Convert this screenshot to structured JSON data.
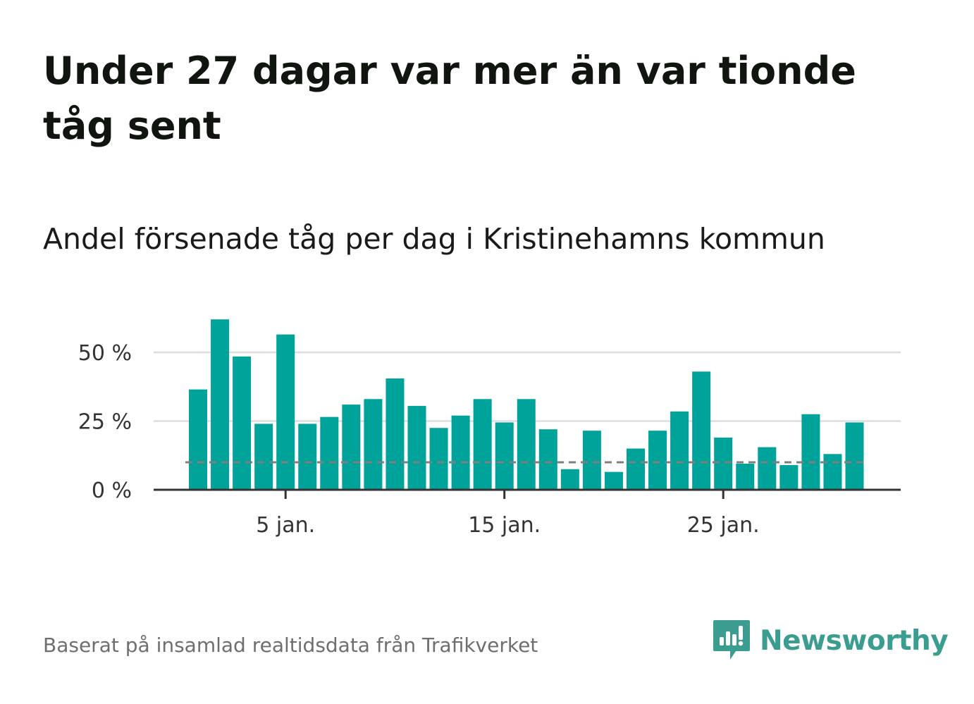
{
  "title": "Under 27 dagar var mer än var tionde tåg sent",
  "subtitle": "Andel försenade tåg per dag i Kristinehamns kommun",
  "footer": {
    "source": "Baserat på insamlad realtidsdata från Trafikverket",
    "brand": "Newsworthy",
    "brand_icon": "newsworthy-logo-icon"
  },
  "colors": {
    "bar": "#00a39a",
    "gridline": "#dddddd",
    "baseline": "#333333",
    "reference_line": "#7f7f7f",
    "brand": "#3a9d8f"
  },
  "chart_data": {
    "type": "bar",
    "x": [
      "2024-01-01",
      "2024-01-02",
      "2024-01-03",
      "2024-01-04",
      "2024-01-05",
      "2024-01-06",
      "2024-01-07",
      "2024-01-08",
      "2024-01-09",
      "2024-01-10",
      "2024-01-11",
      "2024-01-12",
      "2024-01-13",
      "2024-01-14",
      "2024-01-15",
      "2024-01-16",
      "2024-01-17",
      "2024-01-18",
      "2024-01-19",
      "2024-01-20",
      "2024-01-21",
      "2024-01-22",
      "2024-01-23",
      "2024-01-24",
      "2024-01-25",
      "2024-01-26",
      "2024-01-27",
      "2024-01-28",
      "2024-01-29",
      "2024-01-30",
      "2024-01-31"
    ],
    "values": [
      36.5,
      62,
      48.5,
      24,
      56.5,
      24,
      26.5,
      31,
      33,
      40.5,
      30.5,
      22.5,
      27,
      33,
      24.5,
      33,
      22,
      7.5,
      21.5,
      6.5,
      15,
      21.5,
      28.5,
      43,
      19,
      9.5,
      15.5,
      9,
      27.5,
      13,
      24.5
    ],
    "reference_line": 10,
    "ylim": [
      0,
      65
    ],
    "yticks": [
      {
        "value": 0,
        "label": "0 %"
      },
      {
        "value": 25,
        "label": "25 %"
      },
      {
        "value": 50,
        "label": "50 %"
      }
    ],
    "xticks": [
      {
        "value": "2024-01-05",
        "label": "5 jan."
      },
      {
        "value": "2024-01-15",
        "label": "15 jan."
      },
      {
        "value": "2024-01-25",
        "label": "25 jan."
      }
    ],
    "grid": true,
    "xlabel": "",
    "ylabel": ""
  }
}
